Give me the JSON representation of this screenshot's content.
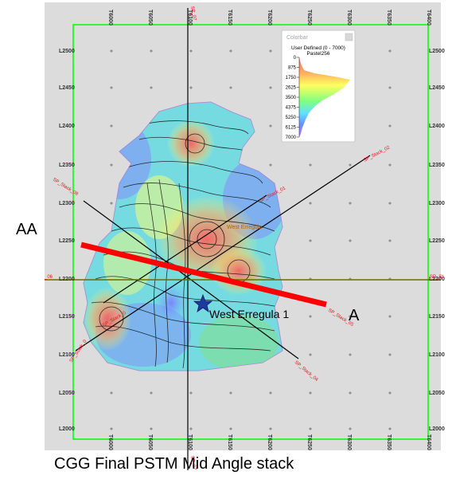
{
  "map": {
    "caption": "CGG Final PSTM Mid Angle stack",
    "top_ticks": [
      "T6000",
      "T6050",
      "T6100",
      "T6150",
      "T6200",
      "T6250",
      "T6300",
      "T6350",
      "T6400"
    ],
    "bottom_ticks": [
      "T6000",
      "T6050",
      "T6100",
      "T6150",
      "T6200",
      "T6250",
      "T6300",
      "T6350",
      "T6400"
    ],
    "left_ticks": [
      "L2500",
      "L2450",
      "L2400",
      "L2350",
      "L2300",
      "L2250",
      "L2200",
      "L2150",
      "L2100",
      "L2050",
      "L2000"
    ],
    "right_ticks": [
      "L2500",
      "L2450",
      "L2400",
      "L2350",
      "L2300",
      "L2250",
      "L2200",
      "L2150",
      "L2100",
      "L2050",
      "L2000"
    ],
    "line_labels": {
      "sp_stack_02": "SP_Stack_02",
      "sp_stack_01": "SP_Stack_01",
      "sp_stack_08": "SP_Stack_08",
      "sp_stack_05": "SP_Stack_05",
      "sp_stack_06_left": "_06",
      "sp_stack_06_right": "SP_St",
      "sp_stack_04": "SP_Stack_04",
      "sp_stack_03": "SP_Stack_03",
      "sp_stack_07_top": "SP_07",
      "sp_stack_07_bottom": "SP_07",
      "sp_stack_left_mid": "SP_Stack_0"
    },
    "section_label_aa": "AA",
    "section_label_a": "A",
    "well_label": "West Erregula 1",
    "orange_well_label": "West Erregula",
    "colors": {
      "section_line": "#ff0000",
      "frame": "#00ff00",
      "background": "#dcdcdc",
      "horizon_line": "#6b6b00",
      "well_marker": "#1f3a9e"
    }
  },
  "colorbar": {
    "title": "Colorbar",
    "subtitle_line1": "User Defined (0 - 7000)",
    "subtitle_line2": "Pastel256",
    "ticks": [
      "0",
      "875",
      "1750",
      "2625",
      "3500",
      "4375",
      "5250",
      "6125",
      "7000"
    ],
    "range": [
      0,
      7000
    ]
  }
}
